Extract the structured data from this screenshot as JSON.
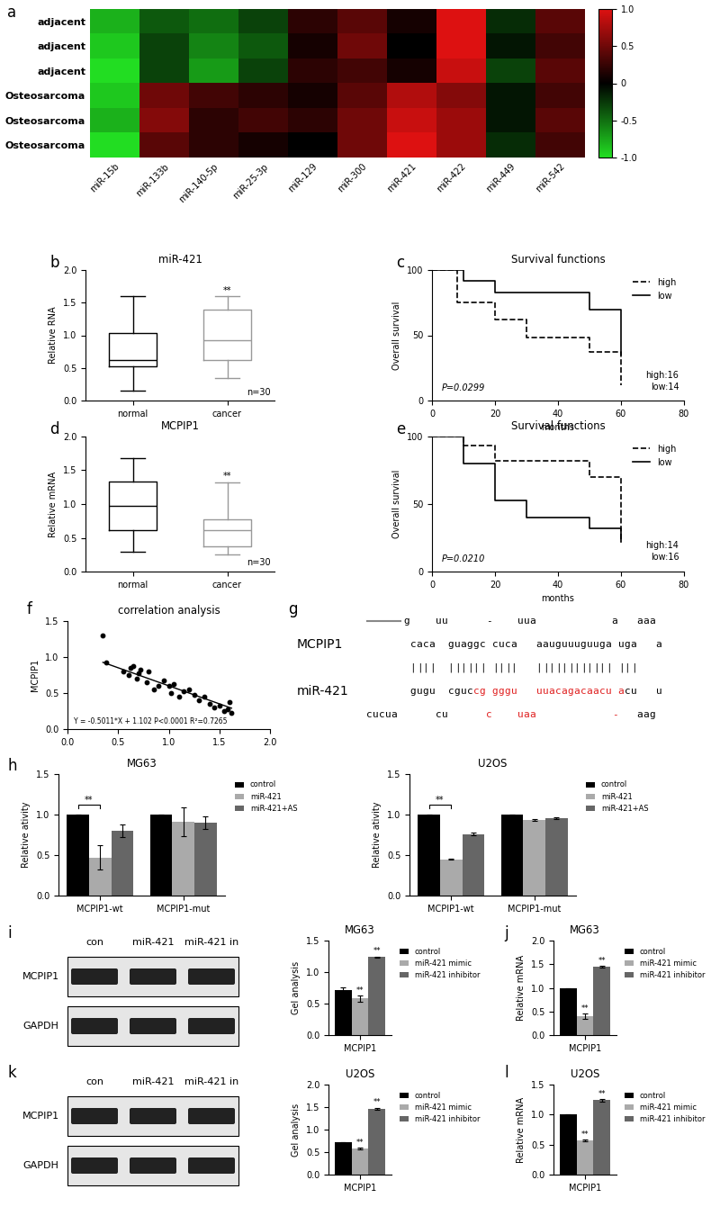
{
  "panel_labels": [
    "a",
    "b",
    "c",
    "d",
    "e",
    "f",
    "g",
    "h",
    "i",
    "j",
    "k",
    "l"
  ],
  "chart_data": [
    {
      "type": "heatmap",
      "rows": [
        "adjacent",
        "adjacent",
        "adjacent",
        "Osteosarcoma",
        "Osteosarcoma",
        "Osteosarcoma"
      ],
      "columns": [
        "miR-15b",
        "miR-133b",
        "miR-140-5p",
        "miR-25-3p",
        "miR-129",
        "miR-300",
        "miR-421",
        "miR-422",
        "miR-449",
        "miR-542"
      ],
      "cells": [
        [
          -0.8,
          -0.4,
          -0.5,
          -0.3,
          0.2,
          0.4,
          0.1,
          1.0,
          -0.2,
          0.4
        ],
        [
          -0.9,
          -0.3,
          -0.6,
          -0.4,
          0.1,
          0.5,
          0.0,
          1.0,
          -0.1,
          0.3
        ],
        [
          -1.0,
          -0.3,
          -0.7,
          -0.3,
          0.2,
          0.3,
          0.1,
          0.9,
          -0.3,
          0.4
        ],
        [
          -0.9,
          0.5,
          0.3,
          0.2,
          0.1,
          0.4,
          0.8,
          0.6,
          -0.1,
          0.3
        ],
        [
          -0.8,
          0.6,
          0.2,
          0.3,
          0.2,
          0.5,
          0.9,
          0.7,
          -0.1,
          0.4
        ],
        [
          -1.0,
          0.4,
          0.2,
          0.1,
          0.0,
          0.5,
          1.0,
          0.7,
          -0.2,
          0.3
        ]
      ],
      "colorbar_range": [
        -1,
        1
      ],
      "colorbar_ticks": [
        {
          "value": -1,
          "label": "-1.0"
        },
        -0.5,
        0,
        0.5,
        {
          "value": 1,
          "label": "1.0"
        }
      ]
    },
    {
      "type": "box",
      "title": "miR-421",
      "y_label": "Relative RNA",
      "categories": [
        "normal",
        "cancer"
      ],
      "boxes": [
        {
          "min": 0.15,
          "q1": 0.52,
          "median": 0.62,
          "q3": 1.03,
          "max": 1.6
        },
        {
          "min": 0.35,
          "q1": 0.62,
          "median": 0.92,
          "q3": 1.4,
          "max": 1.6
        }
      ],
      "colors": [
        "#000000",
        "#999999"
      ],
      "ylim": [
        0,
        2
      ],
      "yticks": [
        {
          "value": 0,
          "label": "0.0"
        },
        0.5,
        {
          "value": 1,
          "label": "1.0"
        },
        1.5,
        {
          "value": 2,
          "label": "2.0"
        }
      ],
      "annotations": [
        {
          "text": "**",
          "category": "cancer"
        },
        {
          "text": "n=30"
        }
      ]
    },
    {
      "type": "step",
      "title": "Survival functions",
      "x_label": "months",
      "y_label": "Overall survival",
      "xlim": [
        0,
        80
      ],
      "xticks": [
        0,
        20,
        40,
        60,
        80
      ],
      "ylim": [
        0,
        100
      ],
      "yticks": [
        0,
        50,
        100
      ],
      "series": [
        {
          "name": "high",
          "color": "#000000",
          "line_style": "dashed",
          "x": [
            0,
            8,
            20,
            30,
            50,
            60
          ],
          "values": [
            100,
            75,
            62,
            48,
            37,
            12
          ]
        },
        {
          "name": "low",
          "color": "#000000",
          "line_style": "solid",
          "x": [
            0,
            10,
            20,
            50,
            60
          ],
          "values": [
            100,
            92,
            83,
            70,
            35
          ]
        }
      ],
      "legend": "upper right",
      "annotations": [
        {
          "text": "P=0.0299"
        },
        {
          "text": "high:16"
        },
        {
          "text": "low:14"
        }
      ]
    },
    {
      "type": "box",
      "title": "MCPIP1",
      "y_label": "Relative mRNA",
      "categories": [
        "normal",
        "cancer"
      ],
      "boxes": [
        {
          "min": 0.3,
          "q1": 0.62,
          "median": 0.97,
          "q3": 1.33,
          "max": 1.68
        },
        {
          "min": 0.25,
          "q1": 0.38,
          "median": 0.62,
          "q3": 0.78,
          "max": 1.32
        }
      ],
      "colors": [
        "#000000",
        "#999999"
      ],
      "ylim": [
        0,
        2
      ],
      "yticks": [
        {
          "value": 0,
          "label": "0.0"
        },
        0.5,
        {
          "value": 1,
          "label": "1.0"
        },
        1.5,
        {
          "value": 2,
          "label": "2.0"
        }
      ],
      "annotations": [
        {
          "text": "**",
          "category": "cancer"
        },
        {
          "text": "n=30"
        }
      ]
    },
    {
      "type": "step",
      "title": "Survival functions",
      "x_label": "months",
      "y_label": "Overall survival",
      "xlim": [
        0,
        80
      ],
      "xticks": [
        0,
        20,
        40,
        60,
        80
      ],
      "ylim": [
        0,
        100
      ],
      "yticks": [
        0,
        50,
        100
      ],
      "series": [
        {
          "name": "high",
          "color": "#000000",
          "line_style": "dashed",
          "x": [
            0,
            10,
            20,
            50,
            60
          ],
          "values": [
            100,
            93,
            82,
            70,
            22
          ]
        },
        {
          "name": "low",
          "color": "#000000",
          "line_style": "solid",
          "x": [
            0,
            10,
            20,
            30,
            50,
            60
          ],
          "values": [
            100,
            80,
            53,
            40,
            32,
            22
          ]
        }
      ],
      "legend": "upper right",
      "annotations": [
        {
          "text": "P=0.0210"
        },
        {
          "text": "high:14"
        },
        {
          "text": "low:16"
        }
      ]
    },
    {
      "type": "scatter",
      "title": "correlation analysis",
      "y_label": "MCPIP1",
      "color": "#000000",
      "x": [
        0.35,
        0.38,
        0.55,
        0.6,
        0.62,
        0.65,
        0.68,
        0.7,
        0.72,
        0.78,
        0.8,
        0.85,
        0.9,
        0.95,
        1.0,
        1.02,
        1.05,
        1.1,
        1.15,
        1.2,
        1.25,
        1.3,
        1.35,
        1.4,
        1.45,
        1.5,
        1.55,
        1.58,
        1.6,
        1.62
      ],
      "values": [
        1.3,
        0.93,
        0.8,
        0.75,
        0.85,
        0.88,
        0.7,
        0.78,
        0.82,
        0.65,
        0.8,
        0.55,
        0.6,
        0.68,
        0.6,
        0.5,
        0.62,
        0.45,
        0.52,
        0.55,
        0.48,
        0.4,
        0.45,
        0.35,
        0.3,
        0.32,
        0.25,
        0.28,
        0.38,
        0.22
      ],
      "xlim": [
        0,
        2
      ],
      "xticks": [
        {
          "value": 0,
          "label": "0.0"
        },
        0.5,
        {
          "value": 1,
          "label": "1.0"
        },
        1.5,
        {
          "value": 2,
          "label": "2.0"
        }
      ],
      "ylim": [
        0,
        1.5
      ],
      "yticks": [
        {
          "value": 0,
          "label": "0.0"
        },
        0.5,
        {
          "value": 1,
          "label": "1.0"
        },
        1.5
      ],
      "fit": {
        "slope": -0.5011,
        "intercept": 1.102
      },
      "annotations": [
        {
          "text": "Y = -0.5011*X + 1.102 P<0.0001 R²=0.7265"
        }
      ]
    },
    {
      "type": "bar",
      "title": "MG63",
      "y_label": "Relative ativity",
      "categories": [
        "MCPIP1-wt",
        "MCPIP1-mut"
      ],
      "series": [
        {
          "name": "control",
          "color": "#000000",
          "values": [
            1.0,
            1.0
          ],
          "errors": [
            0,
            0
          ]
        },
        {
          "name": "miR-421",
          "color": "#aaaaaa",
          "values": [
            0.47,
            0.91
          ],
          "errors": [
            0.15,
            0.18
          ]
        },
        {
          "name": "miR-421+AS",
          "color": "#666666",
          "values": [
            0.8,
            0.9
          ],
          "errors": [
            0.08,
            0.08
          ]
        }
      ],
      "ylim": [
        0,
        1.5
      ],
      "yticks": [
        {
          "value": 0,
          "label": "0.0"
        },
        0.5,
        {
          "value": 1,
          "label": "1.0"
        },
        1.5
      ],
      "legend": "upper left",
      "annotations": [
        {
          "text": "**",
          "category": "MCPIP1-wt",
          "between": [
            "control",
            "miR-421"
          ]
        }
      ]
    },
    {
      "type": "bar",
      "title": "U2OS",
      "y_label": "Relative ativity",
      "categories": [
        "MCPIP1-wt",
        "MCPIP1-mut"
      ],
      "series": [
        {
          "name": "control",
          "color": "#000000",
          "values": [
            1.0,
            1.0
          ],
          "errors": [
            0,
            0
          ]
        },
        {
          "name": "miR-421",
          "color": "#aaaaaa",
          "values": [
            0.45,
            0.93
          ],
          "errors": [
            0.01,
            0.01
          ]
        },
        {
          "name": "miR-421+AS",
          "color": "#666666",
          "values": [
            0.76,
            0.96
          ],
          "errors": [
            0.02,
            0.01
          ]
        }
      ],
      "ylim": [
        0,
        1.5
      ],
      "yticks": [
        {
          "value": 0,
          "label": "0.0"
        },
        0.5,
        {
          "value": 1,
          "label": "1.0"
        },
        1.5
      ],
      "legend": "upper left",
      "annotations": [
        {
          "text": "**",
          "category": "MCPIP1-wt",
          "between": [
            "control",
            "miR-421"
          ]
        }
      ]
    },
    {
      "type": "bar",
      "title": "MG63",
      "y_label": "Gel analysis",
      "categories": [
        "MCPIP1"
      ],
      "series": [
        {
          "name": "control",
          "color": "#000000",
          "values": [
            0.72
          ],
          "errors": [
            0.04
          ]
        },
        {
          "name": "miR-421 mimic",
          "color": "#aaaaaa",
          "values": [
            0.58
          ],
          "errors": [
            0.05
          ]
        },
        {
          "name": "miR-421 inhibitor",
          "color": "#666666",
          "values": [
            1.24
          ],
          "errors": [
            0.01
          ]
        }
      ],
      "ylim": [
        0,
        1.5
      ],
      "yticks": [
        {
          "value": 0,
          "label": "0.0"
        },
        0.5,
        {
          "value": 1,
          "label": "1.0"
        },
        1.5
      ],
      "legend": "upper left",
      "annotations": [
        {
          "text": "**",
          "category": "MCPIP1",
          "series": "miR-421 mimic"
        },
        {
          "text": "**",
          "category": "MCPIP1",
          "series": "miR-421 inhibitor"
        }
      ]
    },
    {
      "type": "bar",
      "title": "MG63",
      "y_label": "Relative mRNA",
      "categories": [
        "MCPIP1"
      ],
      "series": [
        {
          "name": "control",
          "color": "#000000",
          "values": [
            1.0
          ],
          "errors": [
            0
          ]
        },
        {
          "name": "miR-421 mimic",
          "color": "#aaaaaa",
          "values": [
            0.4
          ],
          "errors": [
            0.06
          ]
        },
        {
          "name": "miR-421 inhibitor",
          "color": "#666666",
          "values": [
            1.45
          ],
          "errors": [
            0.02
          ]
        }
      ],
      "ylim": [
        0,
        2
      ],
      "yticks": [
        {
          "value": 0,
          "label": "0.0"
        },
        0.5,
        {
          "value": 1,
          "label": "1.0"
        },
        1.5,
        {
          "value": 2,
          "label": "2.0"
        }
      ],
      "legend": "upper left",
      "annotations": [
        {
          "text": "**",
          "category": "MCPIP1",
          "series": "miR-421 mimic"
        },
        {
          "text": "**",
          "category": "MCPIP1",
          "series": "miR-421 inhibitor"
        }
      ]
    },
    {
      "type": "bar",
      "title": "U2OS",
      "y_label": "Gel analysis",
      "categories": [
        "MCPIP1"
      ],
      "series": [
        {
          "name": "control",
          "color": "#000000",
          "values": [
            0.72
          ],
          "errors": [
            0.005
          ]
        },
        {
          "name": "miR-421 mimic",
          "color": "#aaaaaa",
          "values": [
            0.58
          ],
          "errors": [
            0.02
          ]
        },
        {
          "name": "miR-421 inhibitor",
          "color": "#666666",
          "values": [
            1.47
          ],
          "errors": [
            0.02
          ]
        }
      ],
      "ylim": [
        0,
        2
      ],
      "yticks": [
        {
          "value": 0,
          "label": "0.0"
        },
        0.5,
        {
          "value": 1,
          "label": "1.0"
        },
        1.5,
        {
          "value": 2,
          "label": "2.0"
        }
      ],
      "legend": "upper left",
      "annotations": [
        {
          "text": "**",
          "category": "MCPIP1",
          "series": "miR-421 mimic"
        },
        {
          "text": "**",
          "category": "MCPIP1",
          "series": "miR-421 inhibitor"
        }
      ]
    },
    {
      "type": "bar",
      "title": "U2OS",
      "y_label": "Relative mRNA",
      "categories": [
        "MCPIP1"
      ],
      "series": [
        {
          "name": "control",
          "color": "#000000",
          "values": [
            1.0
          ],
          "errors": [
            0
          ]
        },
        {
          "name": "miR-421 mimic",
          "color": "#aaaaaa",
          "values": [
            0.57
          ],
          "errors": [
            0.02
          ]
        },
        {
          "name": "miR-421 inhibitor",
          "color": "#666666",
          "values": [
            1.24
          ],
          "errors": [
            0.02
          ]
        }
      ],
      "ylim": [
        0,
        1.5
      ],
      "yticks": [
        {
          "value": 0,
          "label": "0.0"
        },
        0.5,
        {
          "value": 1,
          "label": "1.0"
        },
        1.5
      ],
      "legend": "upper left",
      "annotations": [
        {
          "text": "**",
          "category": "MCPIP1",
          "series": "miR-421 mimic"
        },
        {
          "text": "**",
          "category": "MCPIP1",
          "series": "miR-421 inhibitor"
        }
      ]
    }
  ],
  "alignment": {
    "lines": [
      {
        "segments": [
          {
            "text": "      g    uu      -    uua            a   aaa",
            "color": "#000000"
          }
        ]
      },
      {
        "label": "MCPIP1",
        "segments": [
          {
            "text": "       caca  guaggc cuca   aauguuuguuga uga   a",
            "color": "#000000"
          }
        ]
      },
      {
        "segments": [
          {
            "text": "       ||||  |||||| ||||   |||||||||||| |||",
            "color": "#000000"
          }
        ]
      },
      {
        "label": "miR-421",
        "segments": [
          {
            "text": "       gugu  cguc",
            "color": "#000000"
          },
          {
            "text": "cg gggu   uuacagacaacu a",
            "color": "#e02020"
          },
          {
            "text": "cu   u",
            "color": "#000000"
          }
        ]
      },
      {
        "segments": [
          {
            "text": "cucua      cu",
            "color": "#000000"
          },
          {
            "text": "      c    uaa            -",
            "color": "#e02020"
          },
          {
            "text": "   aag",
            "color": "#000000"
          }
        ]
      }
    ]
  },
  "blots": [
    {
      "lanes": [
        "con",
        "miR-421",
        "miR-421 in"
      ],
      "rows": [
        "MCPIP1",
        "GAPDH"
      ]
    },
    {
      "lanes": [
        "con",
        "miR-421",
        "miR-421 in"
      ],
      "rows": [
        "MCPIP1",
        "GAPDH"
      ]
    }
  ]
}
